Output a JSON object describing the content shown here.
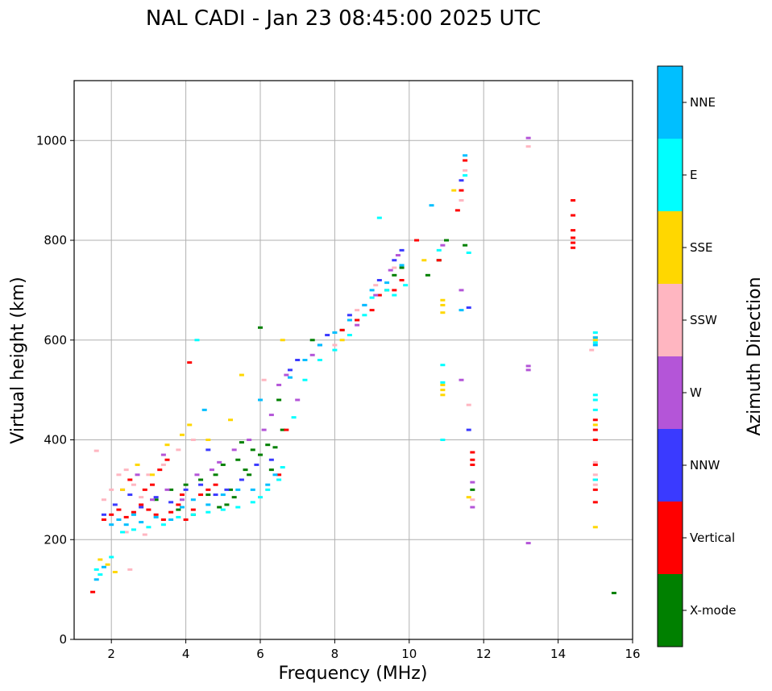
{
  "chart_data": {
    "type": "scatter",
    "title": "NAL CADI - Jan 23 08:45:00 2025 UTC",
    "xlabel": "Frequency (MHz)",
    "ylabel": "Virtual height (km)",
    "xlim": [
      1,
      16
    ],
    "ylim": [
      0,
      1120
    ],
    "xticks": [
      2,
      4,
      6,
      8,
      10,
      12,
      14,
      16
    ],
    "yticks": [
      0,
      200,
      400,
      600,
      800,
      1000
    ],
    "grid": true,
    "colorbar": {
      "label": "Azimuth Direction",
      "categories": [
        {
          "name": "X-mode",
          "color": "#008000"
        },
        {
          "name": "Vertical",
          "color": "#ff0000"
        },
        {
          "name": "NNW",
          "color": "#3a3aff"
        },
        {
          "name": "W",
          "color": "#b455d8"
        },
        {
          "name": "SSW",
          "color": "#ffb6c1"
        },
        {
          "name": "SSE",
          "color": "#ffd700"
        },
        {
          "name": "E",
          "color": "#00ffff"
        },
        {
          "name": "NNE",
          "color": "#00bfff"
        }
      ]
    },
    "series": [
      {
        "name": "X-mode",
        "points": [
          [
            3.2,
            280
          ],
          [
            3.6,
            300
          ],
          [
            4.0,
            310
          ],
          [
            4.4,
            320
          ],
          [
            4.8,
            330
          ],
          [
            5.0,
            350
          ],
          [
            5.2,
            300
          ],
          [
            5.4,
            360
          ],
          [
            5.6,
            340
          ],
          [
            5.8,
            380
          ],
          [
            6.0,
            370
          ],
          [
            6.2,
            390
          ],
          [
            6.4,
            385
          ],
          [
            6.6,
            420
          ],
          [
            4.6,
            290
          ],
          [
            5.1,
            270
          ],
          [
            5.5,
            395
          ],
          [
            6.0,
            625
          ],
          [
            7.4,
            600
          ],
          [
            8.2,
            620
          ],
          [
            8.6,
            640
          ],
          [
            9.4,
            700
          ],
          [
            9.6,
            730
          ],
          [
            9.8,
            745
          ],
          [
            10.5,
            730
          ],
          [
            10.8,
            760
          ],
          [
            11.0,
            800
          ],
          [
            11.5,
            790
          ],
          [
            11.7,
            300
          ],
          [
            15.5,
            93
          ],
          [
            3.8,
            260
          ],
          [
            4.2,
            250
          ],
          [
            4.9,
            265
          ],
          [
            5.3,
            285
          ],
          [
            5.7,
            330
          ],
          [
            6.3,
            340
          ],
          [
            6.5,
            480
          ]
        ]
      },
      {
        "name": "Vertical",
        "points": [
          [
            1.5,
            95
          ],
          [
            1.8,
            240
          ],
          [
            2.0,
            250
          ],
          [
            2.2,
            260
          ],
          [
            2.4,
            245
          ],
          [
            2.6,
            255
          ],
          [
            2.8,
            270
          ],
          [
            3.0,
            260
          ],
          [
            3.2,
            250
          ],
          [
            3.4,
            240
          ],
          [
            3.6,
            255
          ],
          [
            3.8,
            270
          ],
          [
            4.0,
            240
          ],
          [
            4.2,
            260
          ],
          [
            4.4,
            290
          ],
          [
            4.6,
            300
          ],
          [
            4.8,
            310
          ],
          [
            2.5,
            320
          ],
          [
            2.9,
            300
          ],
          [
            3.1,
            310
          ],
          [
            3.3,
            340
          ],
          [
            3.5,
            360
          ],
          [
            3.9,
            290
          ],
          [
            4.1,
            555
          ],
          [
            6.5,
            330
          ],
          [
            6.7,
            420
          ],
          [
            8.2,
            620
          ],
          [
            8.6,
            640
          ],
          [
            9.0,
            660
          ],
          [
            9.2,
            690
          ],
          [
            9.6,
            700
          ],
          [
            9.8,
            720
          ],
          [
            10.2,
            800
          ],
          [
            10.8,
            760
          ],
          [
            11.3,
            860
          ],
          [
            11.4,
            900
          ],
          [
            11.5,
            960
          ],
          [
            11.7,
            360
          ],
          [
            11.7,
            350
          ],
          [
            11.7,
            375
          ],
          [
            14.4,
            880
          ],
          [
            14.4,
            850
          ],
          [
            14.4,
            820
          ],
          [
            14.4,
            805
          ],
          [
            14.4,
            795
          ],
          [
            14.4,
            785
          ],
          [
            15.0,
            400
          ],
          [
            15.0,
            350
          ],
          [
            15.0,
            320
          ],
          [
            15.0,
            300
          ],
          [
            15.0,
            275
          ],
          [
            15.0,
            420
          ],
          [
            15.0,
            440
          ]
        ]
      },
      {
        "name": "NNW",
        "points": [
          [
            1.8,
            250
          ],
          [
            2.1,
            270
          ],
          [
            2.5,
            290
          ],
          [
            2.8,
            265
          ],
          [
            3.2,
            285
          ],
          [
            3.6,
            275
          ],
          [
            4.0,
            300
          ],
          [
            4.4,
            310
          ],
          [
            4.8,
            290
          ],
          [
            5.1,
            300
          ],
          [
            5.5,
            320
          ],
          [
            6.8,
            540
          ],
          [
            7.0,
            560
          ],
          [
            7.6,
            590
          ],
          [
            7.8,
            610
          ],
          [
            8.4,
            650
          ],
          [
            8.8,
            670
          ],
          [
            9.2,
            720
          ],
          [
            9.6,
            760
          ],
          [
            9.8,
            780
          ],
          [
            11.4,
            920
          ],
          [
            11.6,
            665
          ],
          [
            11.6,
            420
          ],
          [
            4.6,
            380
          ],
          [
            5.9,
            350
          ],
          [
            6.3,
            360
          ]
        ]
      },
      {
        "name": "W",
        "points": [
          [
            2.3,
            300
          ],
          [
            2.7,
            330
          ],
          [
            3.1,
            280
          ],
          [
            3.5,
            300
          ],
          [
            3.9,
            280
          ],
          [
            4.3,
            330
          ],
          [
            4.7,
            340
          ],
          [
            5.3,
            380
          ],
          [
            5.7,
            400
          ],
          [
            6.1,
            420
          ],
          [
            6.3,
            450
          ],
          [
            6.5,
            510
          ],
          [
            6.7,
            530
          ],
          [
            7.0,
            480
          ],
          [
            7.4,
            570
          ],
          [
            8.6,
            630
          ],
          [
            9.1,
            690
          ],
          [
            9.5,
            740
          ],
          [
            9.7,
            770
          ],
          [
            10.9,
            790
          ],
          [
            11.4,
            700
          ],
          [
            11.4,
            520
          ],
          [
            11.7,
            315
          ],
          [
            11.7,
            265
          ],
          [
            13.2,
            1005
          ],
          [
            13.2,
            548
          ],
          [
            13.2,
            540
          ],
          [
            13.2,
            193
          ],
          [
            3.4,
            370
          ],
          [
            4.9,
            355
          ]
        ]
      },
      {
        "name": "SSW",
        "points": [
          [
            1.6,
            378
          ],
          [
            1.8,
            280
          ],
          [
            2.0,
            300
          ],
          [
            2.2,
            330
          ],
          [
            2.4,
            340
          ],
          [
            2.6,
            310
          ],
          [
            2.8,
            285
          ],
          [
            3.0,
            330
          ],
          [
            3.4,
            350
          ],
          [
            3.8,
            380
          ],
          [
            4.2,
            400
          ],
          [
            2.4,
            215
          ],
          [
            2.5,
            140
          ],
          [
            2.9,
            210
          ],
          [
            6.1,
            520
          ],
          [
            8.0,
            590
          ],
          [
            8.6,
            660
          ],
          [
            9.1,
            710
          ],
          [
            9.6,
            745
          ],
          [
            11.4,
            880
          ],
          [
            11.5,
            940
          ],
          [
            11.6,
            470
          ],
          [
            11.7,
            280
          ],
          [
            13.2,
            988
          ],
          [
            14.9,
            580
          ],
          [
            15.0,
            355
          ],
          [
            15.0,
            330
          ],
          [
            15.0,
            310
          ]
        ]
      },
      {
        "name": "SSE",
        "points": [
          [
            1.7,
            160
          ],
          [
            1.9,
            150
          ],
          [
            2.1,
            135
          ],
          [
            2.3,
            300
          ],
          [
            2.7,
            350
          ],
          [
            3.1,
            330
          ],
          [
            3.5,
            390
          ],
          [
            3.9,
            410
          ],
          [
            4.1,
            430
          ],
          [
            4.6,
            400
          ],
          [
            5.2,
            440
          ],
          [
            5.5,
            530
          ],
          [
            6.6,
            600
          ],
          [
            8.2,
            600
          ],
          [
            10.4,
            760
          ],
          [
            10.9,
            680
          ],
          [
            10.9,
            670
          ],
          [
            10.9,
            655
          ],
          [
            10.9,
            510
          ],
          [
            10.9,
            500
          ],
          [
            10.9,
            490
          ],
          [
            11.2,
            900
          ],
          [
            11.6,
            285
          ],
          [
            15.0,
            225
          ],
          [
            15.0,
            430
          ],
          [
            15.0,
            600
          ],
          [
            15.0,
            605
          ]
        ]
      },
      {
        "name": "E",
        "points": [
          [
            1.6,
            140
          ],
          [
            1.7,
            130
          ],
          [
            2.0,
            165
          ],
          [
            2.3,
            215
          ],
          [
            2.6,
            220
          ],
          [
            3.0,
            225
          ],
          [
            3.4,
            230
          ],
          [
            3.8,
            245
          ],
          [
            4.2,
            250
          ],
          [
            4.6,
            255
          ],
          [
            5.0,
            260
          ],
          [
            5.4,
            265
          ],
          [
            5.8,
            275
          ],
          [
            6.0,
            285
          ],
          [
            6.2,
            300
          ],
          [
            6.5,
            320
          ],
          [
            6.6,
            345
          ],
          [
            6.9,
            445
          ],
          [
            7.2,
            520
          ],
          [
            7.6,
            560
          ],
          [
            8.0,
            580
          ],
          [
            8.4,
            610
          ],
          [
            8.8,
            650
          ],
          [
            9.0,
            685
          ],
          [
            9.2,
            845
          ],
          [
            9.4,
            700
          ],
          [
            9.6,
            690
          ],
          [
            9.9,
            710
          ],
          [
            10.8,
            780
          ],
          [
            10.9,
            550
          ],
          [
            10.9,
            515
          ],
          [
            10.9,
            400
          ],
          [
            11.5,
            930
          ],
          [
            11.6,
            775
          ],
          [
            15.0,
            460
          ],
          [
            15.0,
            480
          ],
          [
            15.0,
            490
          ],
          [
            15.0,
            615
          ],
          [
            15.0,
            595
          ],
          [
            15.0,
            320
          ],
          [
            4.3,
            600
          ]
        ]
      },
      {
        "name": "NNE",
        "points": [
          [
            1.6,
            120
          ],
          [
            1.8,
            145
          ],
          [
            2.0,
            230
          ],
          [
            2.2,
            240
          ],
          [
            2.4,
            230
          ],
          [
            2.6,
            250
          ],
          [
            2.8,
            235
          ],
          [
            3.2,
            245
          ],
          [
            3.6,
            240
          ],
          [
            3.9,
            265
          ],
          [
            4.2,
            280
          ],
          [
            4.6,
            270
          ],
          [
            5.0,
            290
          ],
          [
            5.4,
            300
          ],
          [
            5.8,
            300
          ],
          [
            6.2,
            310
          ],
          [
            6.4,
            330
          ],
          [
            6.8,
            525
          ],
          [
            7.2,
            560
          ],
          [
            7.6,
            590
          ],
          [
            8.0,
            615
          ],
          [
            8.4,
            640
          ],
          [
            8.8,
            670
          ],
          [
            9.0,
            700
          ],
          [
            9.4,
            715
          ],
          [
            9.8,
            750
          ],
          [
            10.6,
            870
          ],
          [
            11.4,
            660
          ],
          [
            11.5,
            970
          ],
          [
            15.0,
            590
          ],
          [
            15.0,
            605
          ],
          [
            4.5,
            460
          ],
          [
            6.0,
            480
          ]
        ]
      }
    ]
  }
}
